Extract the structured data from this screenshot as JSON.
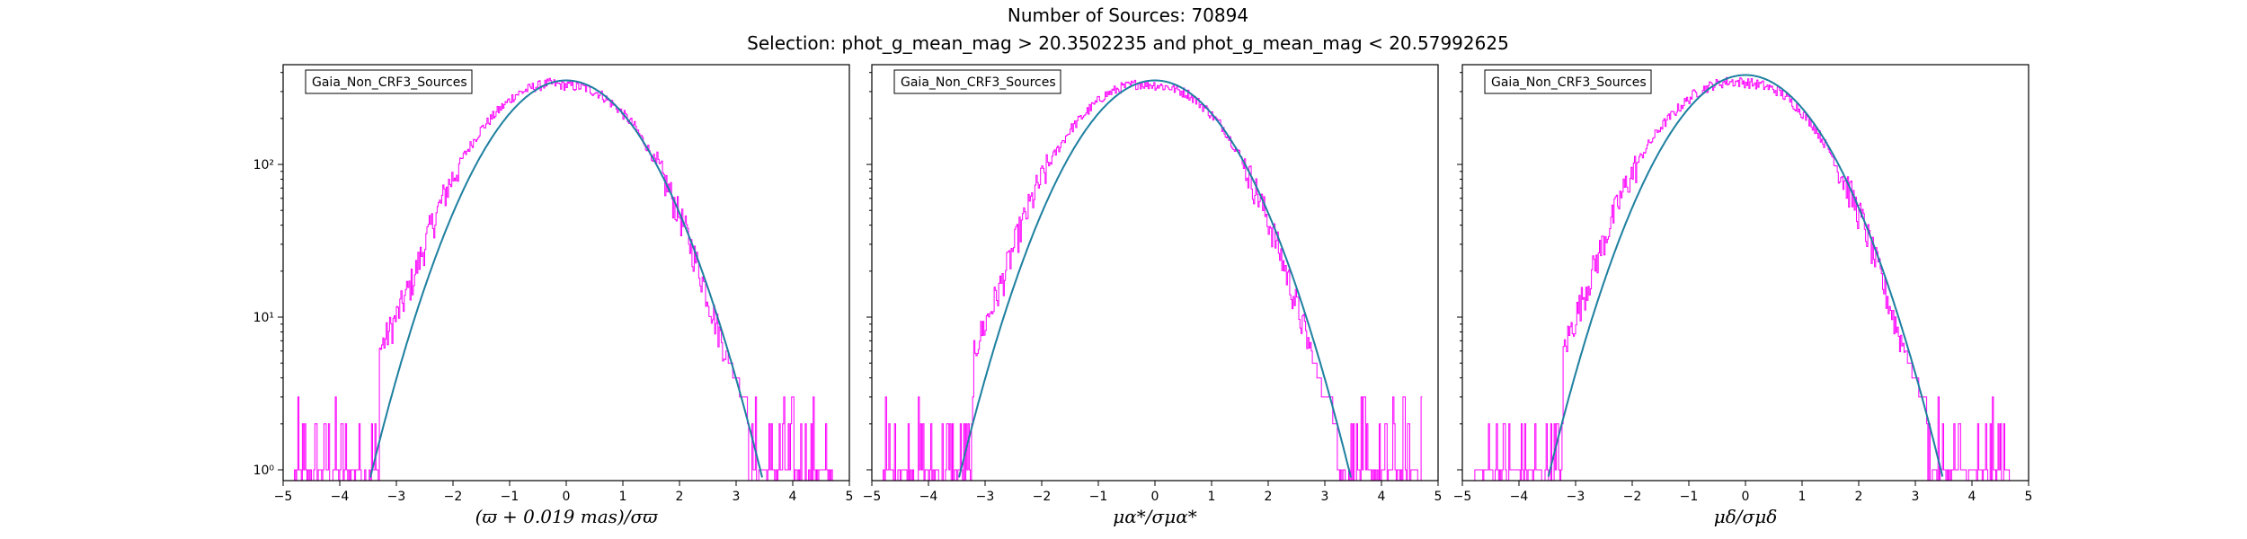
{
  "figure": {
    "title": "Number of Sources: 70894",
    "subtitle": "Selection: phot_g_mean_mag > 20.3502235 and phot_g_mean_mag < 20.57992625"
  },
  "colors": {
    "histogram": "#ff00ff",
    "fit": "#1f6fb4",
    "fit_top": "#1a9e7a"
  },
  "chart_data": [
    {
      "type": "histogram",
      "legend": "Gaia_Non_CRF3_Sources",
      "legend_location": "upper-left",
      "xlabel": "(ϖ + 0.019 mas)/σϖ",
      "xlim": [
        -5,
        5
      ],
      "ylim": [
        0.85,
        450
      ],
      "yscale": "log",
      "xticks": [
        "−5",
        "−4",
        "−3",
        "−2",
        "−1",
        "0",
        "1",
        "2",
        "3",
        "4",
        "5"
      ],
      "yticks": [
        {
          "value": 1,
          "label": "10⁰"
        },
        {
          "value": 10,
          "label": "10¹"
        },
        {
          "value": 100,
          "label": "10²"
        }
      ],
      "fit_peak": 355,
      "fit_sigma": 1.0,
      "hist_x": [
        -4.8,
        -4.5,
        -4.2,
        -3.9,
        -3.6,
        -3.3,
        -3.0,
        -2.7,
        -2.4,
        -2.1,
        -1.8,
        -1.5,
        -1.2,
        -0.9,
        -0.6,
        -0.3,
        0.0,
        0.3,
        0.6,
        0.9,
        1.2,
        1.5,
        1.8,
        2.1,
        2.4,
        2.7,
        3.0,
        3.3,
        3.6,
        3.9,
        4.2,
        4.5
      ],
      "hist_y": [
        1,
        1,
        2,
        2,
        3,
        6,
        10,
        18,
        38,
        70,
        115,
        170,
        225,
        285,
        320,
        340,
        330,
        320,
        290,
        235,
        180,
        118,
        70,
        38,
        18,
        8,
        4,
        2,
        1,
        1,
        1,
        1
      ]
    },
    {
      "type": "histogram",
      "legend": "Gaia_Non_CRF3_Sources",
      "legend_location": "upper-left",
      "xlabel": "μα*/σμα*",
      "xlim": [
        -5,
        5
      ],
      "ylim": [
        0.85,
        450
      ],
      "yscale": "log",
      "xticks": [
        "−5",
        "−4",
        "−3",
        "−2",
        "−1",
        "0",
        "1",
        "2",
        "3",
        "4",
        "5"
      ],
      "fit_peak": 355,
      "fit_sigma": 1.0,
      "hist_x": [
        -4.8,
        -4.5,
        -4.2,
        -3.9,
        -3.6,
        -3.3,
        -3.0,
        -2.7,
        -2.4,
        -2.1,
        -1.8,
        -1.5,
        -1.2,
        -0.9,
        -0.6,
        -0.3,
        0.0,
        0.3,
        0.6,
        0.9,
        1.2,
        1.5,
        1.8,
        2.1,
        2.4,
        2.7,
        3.0,
        3.3,
        3.6,
        3.9,
        4.2,
        4.5
      ],
      "hist_y": [
        1,
        1,
        1,
        2,
        3,
        5,
        9,
        17,
        36,
        68,
        112,
        168,
        222,
        282,
        318,
        338,
        332,
        318,
        288,
        232,
        176,
        115,
        66,
        35,
        16,
        7,
        3,
        2,
        1,
        1,
        1,
        1
      ]
    },
    {
      "type": "histogram",
      "legend": "Gaia_Non_CRF3_Sources",
      "legend_location": "upper-left",
      "xlabel": "μδ/σμδ",
      "xlim": [
        -5,
        5
      ],
      "ylim": [
        0.85,
        450
      ],
      "yscale": "log",
      "xticks": [
        "−5",
        "−4",
        "−3",
        "−2",
        "−1",
        "0",
        "1",
        "2",
        "3",
        "4",
        "5"
      ],
      "fit_peak": 385,
      "fit_sigma": 1.0,
      "hist_x": [
        -4.8,
        -4.5,
        -4.2,
        -3.9,
        -3.6,
        -3.3,
        -3.0,
        -2.7,
        -2.4,
        -2.1,
        -1.8,
        -1.5,
        -1.2,
        -0.9,
        -0.6,
        -0.3,
        0.0,
        0.3,
        0.6,
        0.9,
        1.2,
        1.5,
        1.8,
        2.1,
        2.4,
        2.7,
        3.0,
        3.3,
        3.6,
        3.9,
        4.2,
        4.5
      ],
      "hist_y": [
        1,
        1,
        2,
        2,
        3,
        5,
        10,
        20,
        40,
        75,
        120,
        175,
        230,
        290,
        330,
        350,
        345,
        330,
        300,
        240,
        180,
        120,
        72,
        40,
        18,
        8,
        4,
        2,
        1,
        1,
        1,
        1
      ]
    }
  ]
}
